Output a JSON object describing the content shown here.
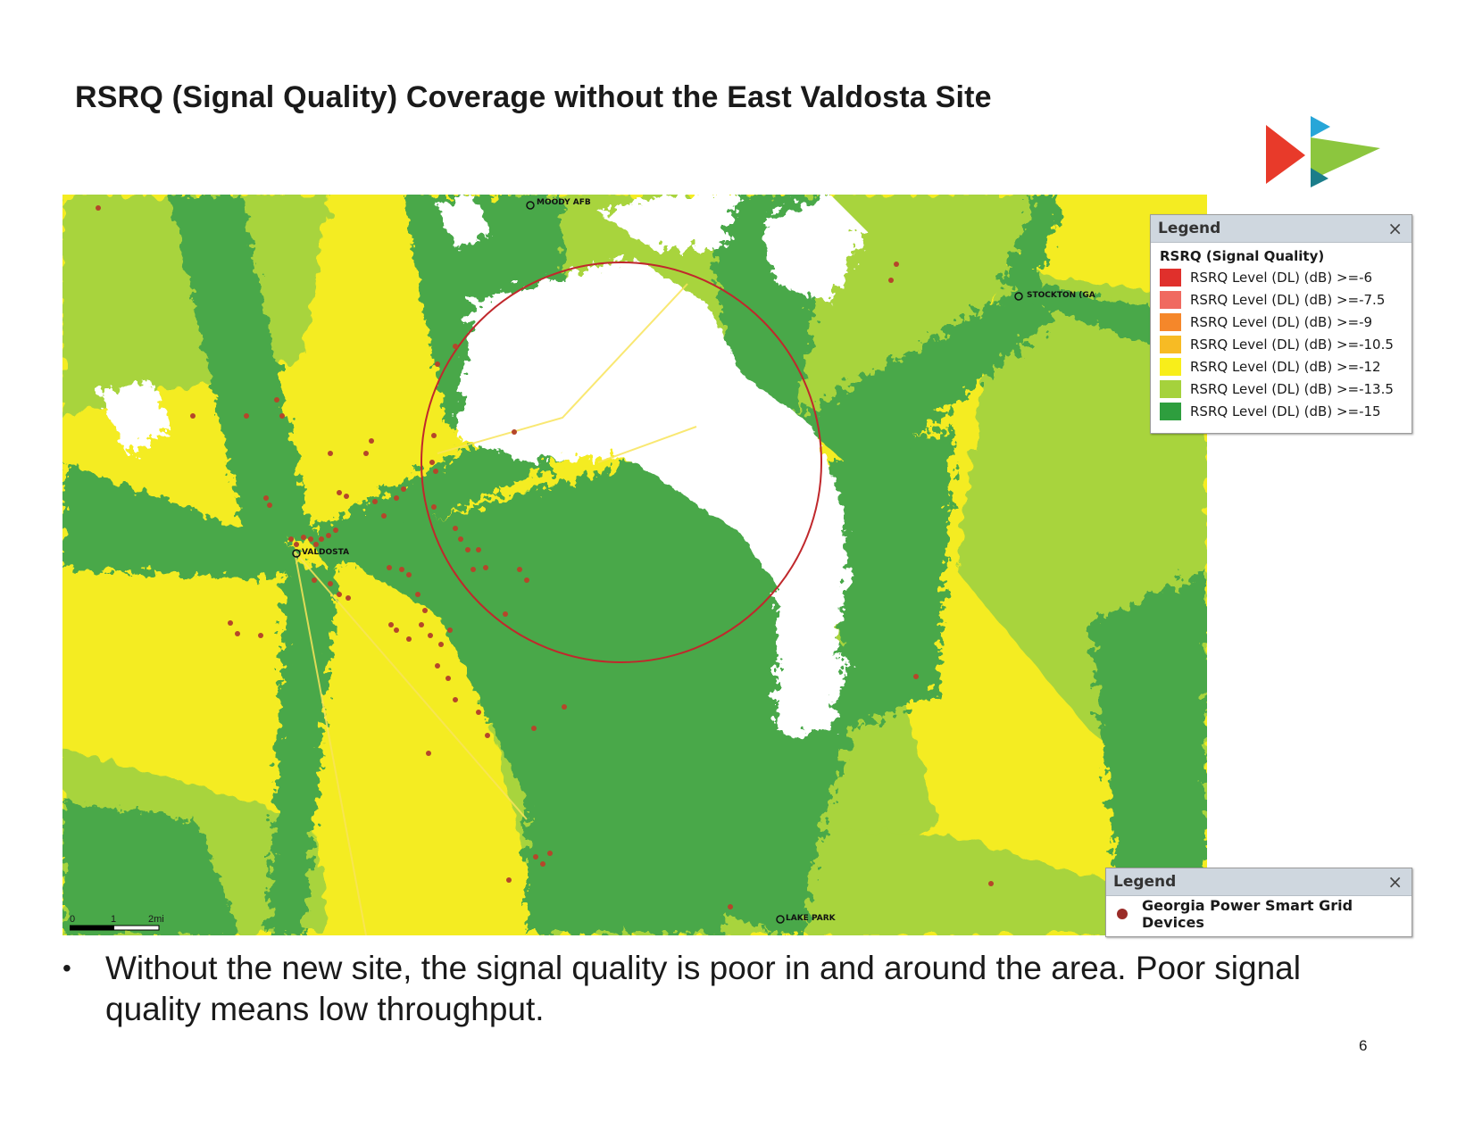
{
  "title": "RSRQ (Signal Quality) Coverage without the East Valdosta Site",
  "colors": {
    "coverage_yellow": "#f4ec22",
    "coverage_lightgreen": "#a8d43c",
    "coverage_green": "#4aa84a",
    "no_coverage": "#ffffff",
    "study_circle": "#c0282c",
    "device_dot": "#b5462a"
  },
  "map": {
    "places": [
      "MOODY AFB",
      "STOCKTON (GA",
      "VALDOSTA",
      "LAKE PARK"
    ],
    "scale": {
      "start": "0",
      "mid": "1",
      "end": "2mi"
    }
  },
  "legend_rsrq": {
    "header": "Legend",
    "close": "×",
    "subtitle": "RSRQ (Signal Quality)",
    "items": [
      {
        "label": "RSRQ Level (DL) (dB) >=-6",
        "color": "#e0302c"
      },
      {
        "label": "RSRQ Level (DL) (dB) >=-7.5",
        "color": "#f06a60"
      },
      {
        "label": "RSRQ Level (DL) (dB) >=-9",
        "color": "#f5872a"
      },
      {
        "label": "RSRQ Level (DL) (dB) >=-10.5",
        "color": "#f7bb24"
      },
      {
        "label": "RSRQ Level (DL) (dB) >=-12",
        "color": "#f8ee1a"
      },
      {
        "label": "RSRQ Level (DL) (dB) >=-13.5",
        "color": "#a5d23c"
      },
      {
        "label": "RSRQ Level (DL) (dB) >=-15",
        "color": "#2e9e3e"
      }
    ]
  },
  "legend_devices": {
    "header": "Legend",
    "close": "×",
    "item": {
      "label": "Georgia Power Smart Grid Devices",
      "color": "#9a2c28"
    }
  },
  "bullet": {
    "mark": "•",
    "text": "Without the new site, the signal quality is poor in and around the area.  Poor signal quality means low throughput."
  },
  "page_number": "6"
}
